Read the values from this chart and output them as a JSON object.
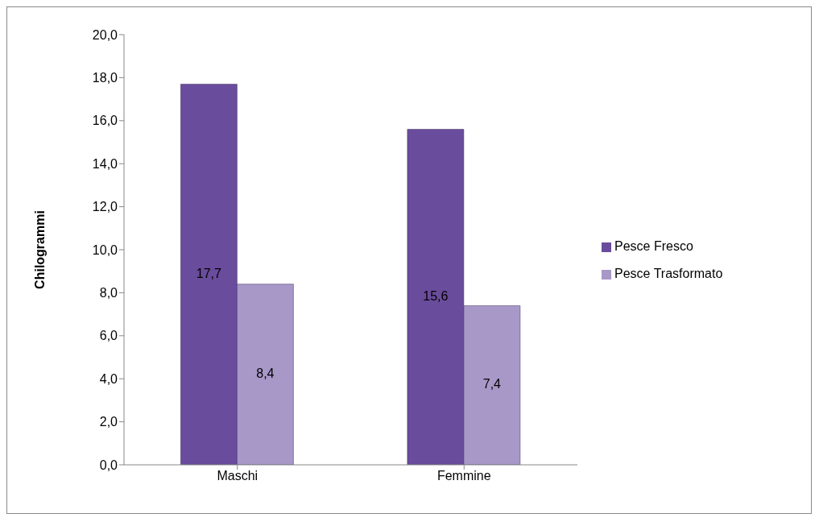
{
  "chart_data": {
    "type": "bar",
    "ylabel": "Chilogrammi",
    "categories": [
      "Maschi",
      "Femmine"
    ],
    "series": [
      {
        "name": "Pesce Fresco",
        "color": "#6a4c9c",
        "values": [
          17.7,
          15.6
        ],
        "value_labels": [
          "17,7",
          "15,6"
        ]
      },
      {
        "name": "Pesce Trasformato",
        "color": "#a898c8",
        "values": [
          8.4,
          7.4
        ],
        "value_labels": [
          "8,4",
          "7,4"
        ]
      }
    ],
    "ylim": [
      0,
      20
    ],
    "yticks": [
      {
        "value": 0,
        "label": "0,0"
      },
      {
        "value": 2,
        "label": "2,0"
      },
      {
        "value": 4,
        "label": "4,0"
      },
      {
        "value": 6,
        "label": "6,0"
      },
      {
        "value": 8,
        "label": "8,0"
      },
      {
        "value": 10,
        "label": "10,0"
      },
      {
        "value": 12,
        "label": "12,0"
      },
      {
        "value": 14,
        "label": "14,0"
      },
      {
        "value": 16,
        "label": "16,0"
      },
      {
        "value": 18,
        "label": "18,0"
      },
      {
        "value": 20,
        "label": "20,0"
      }
    ],
    "grid": false,
    "legend": "right"
  }
}
